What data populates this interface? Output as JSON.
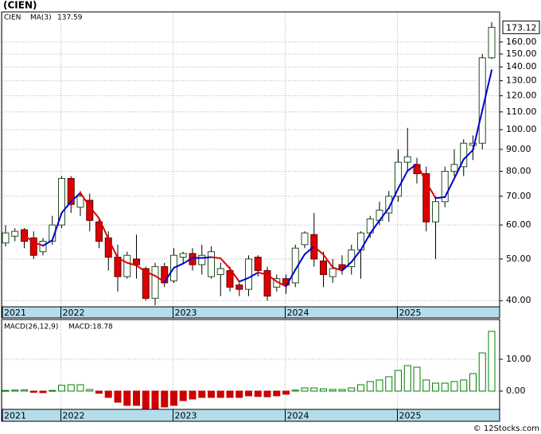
{
  "title": "(CIEN)",
  "footer": "© 12Stocks.com",
  "chart_data": [
    {
      "type": "candlestick",
      "symbol": "CIEN",
      "categories": [
        "2021",
        null,
        null,
        null,
        null,
        null,
        "2022",
        null,
        null,
        null,
        null,
        null,
        null,
        null,
        null,
        null,
        null,
        null,
        "2023",
        null,
        null,
        null,
        null,
        null,
        null,
        null,
        null,
        null,
        null,
        null,
        "2024",
        null,
        null,
        null,
        null,
        null,
        null,
        null,
        null,
        null,
        null,
        null,
        "2025",
        null,
        null,
        null,
        null,
        null,
        null,
        null,
        null,
        null,
        null
      ],
      "open": [
        54.5,
        56.5,
        58.5,
        56,
        52,
        55,
        60,
        77,
        66,
        68.5,
        61,
        56,
        50.5,
        45.5,
        50,
        47.5,
        40.5,
        48,
        44.5,
        50.5,
        51.5,
        48.5,
        45.5,
        46,
        47,
        43.5,
        42.5,
        50.5,
        47,
        43,
        45,
        44,
        54,
        57,
        49.5,
        45.5,
        48.5,
        48,
        52.5,
        57.5,
        61.5,
        64,
        70,
        84,
        83,
        79,
        61,
        68,
        80,
        82,
        92,
        93,
        147
      ],
      "high": [
        60,
        59,
        59,
        58,
        56,
        63,
        78,
        78,
        72,
        71,
        62,
        58,
        54,
        52,
        57,
        48,
        49,
        49,
        53,
        52,
        53,
        54,
        53.5,
        49,
        48,
        44,
        51,
        51,
        48,
        46,
        46,
        54,
        58,
        64,
        52,
        50,
        51,
        54,
        58,
        63,
        68,
        72,
        90,
        101,
        86,
        82,
        70,
        82,
        90,
        95,
        97,
        150,
        178
      ],
      "low": [
        53.5,
        55,
        53,
        50,
        51,
        54,
        59,
        64,
        63,
        58,
        53,
        47,
        42,
        45,
        45,
        40,
        39,
        43,
        44,
        49,
        47,
        46,
        45,
        41,
        42,
        41,
        41,
        45.5,
        40,
        42,
        41.5,
        43,
        53,
        48,
        43,
        44,
        46,
        46,
        45,
        56,
        60,
        61,
        68,
        80,
        75,
        58,
        50,
        66,
        78,
        78,
        85,
        90,
        146
      ],
      "close": [
        57.5,
        58,
        55,
        51,
        55,
        60,
        77,
        67,
        70,
        61.5,
        55,
        50.5,
        45.5,
        51,
        48.5,
        40.5,
        48,
        44,
        51,
        51.5,
        48.5,
        51,
        52,
        47.5,
        43,
        42.5,
        50,
        47,
        41,
        45,
        43.5,
        53,
        57.5,
        50,
        46,
        47.5,
        47.5,
        52.5,
        57.5,
        62,
        65,
        70,
        84,
        86.5,
        79,
        61,
        68,
        80,
        83,
        93,
        93,
        147,
        173.12
      ],
      "up_color": "#ffffff",
      "down_color": "#dd0000",
      "ma": {
        "name": "MA(3)",
        "up_color": "#0000cc",
        "down_color": "#dd0000",
        "values": [
          null,
          null,
          56.8,
          54.7,
          53.7,
          55.3,
          64,
          68,
          71.3,
          66.2,
          62.2,
          55.7,
          50.3,
          49,
          48.3,
          46.7,
          45.7,
          44.2,
          47.7,
          48.8,
          50.3,
          50.3,
          50.5,
          50.2,
          47.5,
          44.3,
          45.2,
          46.5,
          46,
          44.3,
          43.2,
          47.2,
          51.3,
          53.5,
          51.2,
          47.8,
          47,
          49.2,
          52.5,
          57.3,
          61.5,
          65.7,
          73,
          80.2,
          83.2,
          75.5,
          69.3,
          69.7,
          77,
          85.3,
          89.7,
          111,
          137.59
        ]
      },
      "log_scale": true,
      "grid": true,
      "ylim": [
        38.7,
        188
      ],
      "yticks": [
        {
          "value": 40,
          "label": "40.00"
        },
        {
          "value": 50,
          "label": "50.00"
        },
        {
          "value": 60,
          "label": "60.00"
        },
        {
          "value": 70,
          "label": "70.00"
        },
        {
          "value": 80,
          "label": "80.00"
        },
        {
          "value": 90,
          "label": "90.00"
        },
        {
          "value": 100,
          "label": "100.00"
        },
        {
          "value": 110,
          "label": "110.00"
        },
        {
          "value": 120,
          "label": "120.00"
        },
        {
          "value": 130,
          "label": "130.00"
        },
        {
          "value": 140,
          "label": "140.00"
        },
        {
          "value": 150,
          "label": "150.00"
        },
        {
          "value": 160,
          "label": "160.00"
        }
      ]
    },
    {
      "type": "bar",
      "name": "MACD(26,12,9)",
      "value_label": "MACD:18.78",
      "categories": [
        "2021",
        null,
        null,
        null,
        null,
        null,
        "2022",
        null,
        null,
        null,
        null,
        null,
        null,
        null,
        null,
        null,
        null,
        null,
        "2023",
        null,
        null,
        null,
        null,
        null,
        null,
        null,
        null,
        null,
        null,
        null,
        "2024",
        null,
        null,
        null,
        null,
        null,
        null,
        null,
        null,
        null,
        null,
        null,
        "2025",
        null,
        null,
        null,
        null,
        null,
        null,
        null,
        null,
        null,
        null
      ],
      "values": [
        0.2,
        0.3,
        0.4,
        -0.4,
        -0.5,
        0.2,
        1.8,
        2,
        2,
        0.5,
        -0.7,
        -2,
        -3.5,
        -4.5,
        -4.5,
        -5.5,
        -5.5,
        -5,
        -4.5,
        -3,
        -2.5,
        -2,
        -2,
        -2,
        -2,
        -2,
        -1.5,
        -1.7,
        -1.8,
        -1.5,
        -1,
        0.3,
        1,
        1,
        0.7,
        0.5,
        0.5,
        1,
        2,
        3,
        3.5,
        4.5,
        6.5,
        8,
        7.5,
        3.5,
        2.5,
        2.5,
        3,
        3.5,
        5.5,
        12,
        18.78
      ],
      "up_color": "#008000",
      "down_color": "#cc0000",
      "grid": true,
      "ylim": [
        -5.75,
        22.5
      ],
      "yticks": [
        {
          "value": 0,
          "label": "0.00"
        },
        {
          "value": 10,
          "label": "10.00"
        }
      ]
    }
  ]
}
